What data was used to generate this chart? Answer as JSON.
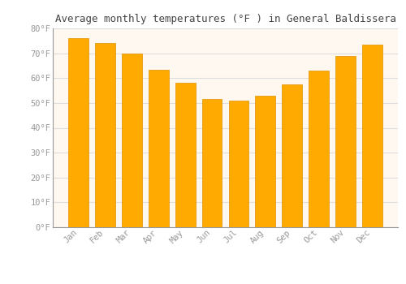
{
  "title": "Average monthly temperatures (°F ) in General Baldissera",
  "months": [
    "Jan",
    "Feb",
    "Mar",
    "Apr",
    "May",
    "Jun",
    "Jul",
    "Aug",
    "Sep",
    "Oct",
    "Nov",
    "Dec"
  ],
  "values": [
    76,
    74,
    70,
    63.5,
    58,
    51.5,
    51,
    53,
    57.5,
    63,
    69,
    73.5
  ],
  "bar_color": "#FFAA00",
  "bar_edge_color": "#E09000",
  "ylim": [
    0,
    80
  ],
  "yticks": [
    0,
    10,
    20,
    30,
    40,
    50,
    60,
    70,
    80
  ],
  "ytick_labels": [
    "0°F",
    "10°F",
    "20°F",
    "30°F",
    "40°F",
    "50°F",
    "60°F",
    "70°F",
    "80°F"
  ],
  "title_fontsize": 9,
  "tick_fontsize": 7.5,
  "background_color": "#FFFFFF",
  "plot_bg_color": "#FFF8F0",
  "grid_color": "#DDDDDD",
  "tick_color": "#999999",
  "spine_color": "#999999"
}
